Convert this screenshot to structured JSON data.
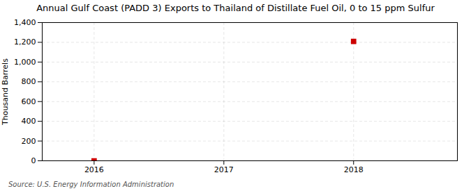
{
  "chart_data": {
    "type": "scatter",
    "title": "Annual Gulf Coast (PADD 3) Exports to Thailand of Distillate Fuel Oil, 0 to 15 ppm Sulfur",
    "ylabel": "Thousand Barrels",
    "source": "Source: U.S. Energy Information Administration",
    "x": [
      2016,
      2018
    ],
    "values": [
      0,
      1209
    ],
    "color": "#cc0000",
    "marker": "square",
    "xlim": [
      2015.6,
      2018.8
    ],
    "xticks": [
      2016,
      2017,
      2018
    ],
    "ylim": [
      0,
      1400
    ],
    "yticks": [
      0,
      200,
      400,
      600,
      800,
      {
        "value": 1000,
        "label": "1,000"
      },
      {
        "value": 1200,
        "label": "1,200"
      },
      {
        "value": 1400,
        "label": "1,400"
      }
    ],
    "grid": true
  }
}
